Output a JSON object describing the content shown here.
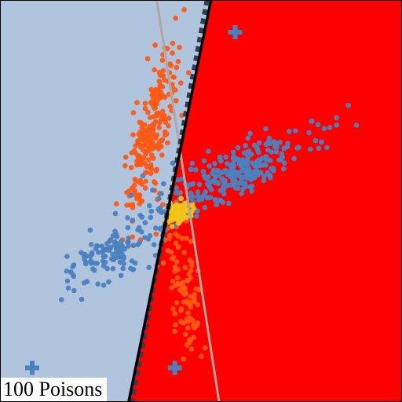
{
  "caption": "100 Poisons",
  "colors": {
    "left_region": "#b0c4de",
    "right_region": "#ff0000",
    "class_a": "#ff5a14",
    "class_b": "#4a82bf",
    "poison": "#f2c418",
    "centroid": "#4a82bf",
    "solid_boundary": "#000000",
    "dashed_boundary": "#2f3f4f",
    "gray_boundary": "#b0a8a0"
  },
  "chart_data": {
    "type": "scatter",
    "title": "",
    "xlabel": "",
    "ylabel": "",
    "xlim": [
      0,
      100
    ],
    "ylim": [
      0,
      100
    ],
    "grid": false,
    "regions": [
      {
        "side": "left",
        "color": "#b0c4de"
      },
      {
        "side": "right",
        "color": "#ff0000"
      }
    ],
    "boundaries": [
      {
        "style": "solid",
        "color": "#000000",
        "points": [
          [
            52.5,
            100
          ],
          [
            32.0,
            0
          ]
        ]
      },
      {
        "style": "dashed",
        "color": "#2f3f4f",
        "points": [
          [
            51.5,
            100
          ],
          [
            32.8,
            0
          ]
        ]
      },
      {
        "style": "solid",
        "color": "#b0a8a0",
        "points": [
          [
            39.0,
            100
          ],
          [
            54.5,
            0
          ]
        ]
      }
    ],
    "series": [
      {
        "marker": "circle",
        "color": "#ff5a14",
        "clusters": [
          {
            "n": 230,
            "mean": [
              37.5,
              66
            ],
            "sd": [
              3.2,
              11
            ],
            "rho": 0.78
          },
          {
            "n": 110,
            "mean": [
              45.5,
              30
            ],
            "sd": [
              2.2,
              9
            ],
            "rho": -0.55
          }
        ]
      },
      {
        "marker": "circle",
        "color": "#4a82bf",
        "clusters": [
          {
            "n": 280,
            "mean": [
              59,
              57
            ],
            "sd": [
              10,
              5.5
            ],
            "rho": 0.83
          },
          {
            "n": 130,
            "mean": [
              29,
              38
            ],
            "sd": [
              7,
              5
            ],
            "rho": 0.72
          }
        ]
      },
      {
        "marker": "circle",
        "color": "#f2c418",
        "clusters": [
          {
            "n": 100,
            "mean": [
              44.5,
              47
            ],
            "sd": [
              1.5,
              1.4
            ],
            "rho": 0.2
          }
        ]
      },
      {
        "marker": "plus",
        "color": "#4a82bf",
        "points": [
          [
            58.5,
            92
          ],
          [
            8,
            8.5
          ],
          [
            43.5,
            8.5
          ]
        ]
      }
    ]
  }
}
